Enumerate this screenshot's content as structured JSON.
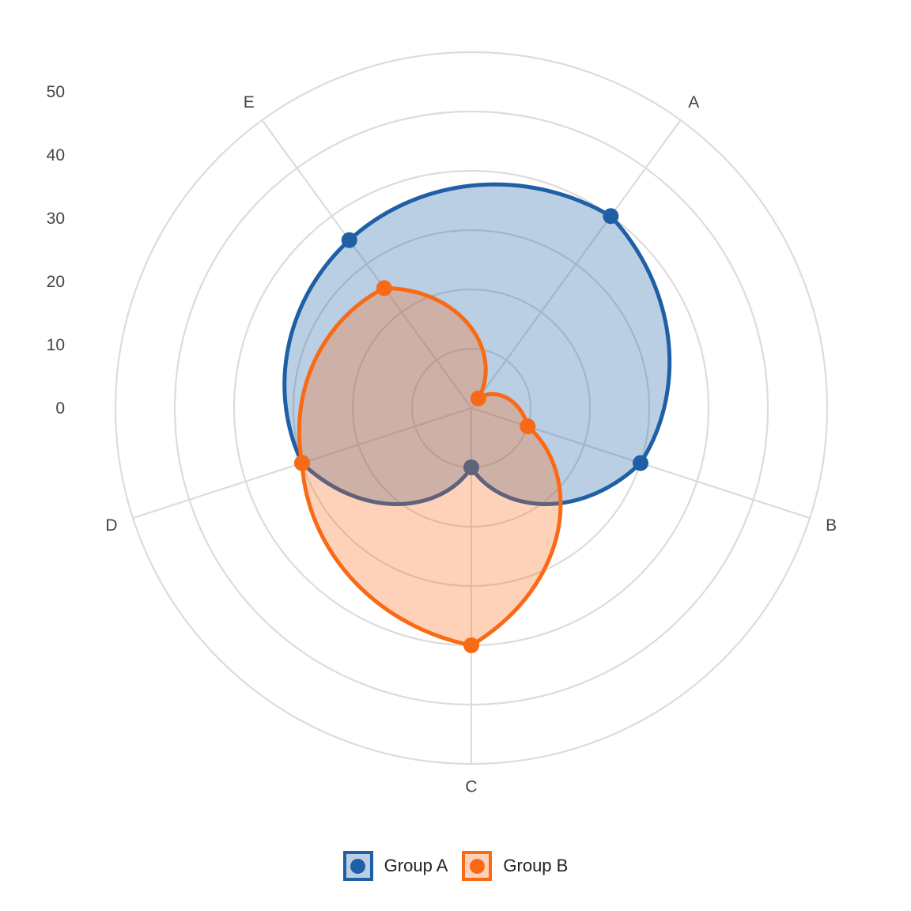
{
  "chart_data": {
    "type": "radar",
    "title": "",
    "categories": [
      "A",
      "B",
      "C",
      "D",
      "E"
    ],
    "radial_ticks": [
      "0",
      "10",
      "20",
      "30",
      "40",
      "50"
    ],
    "rlim": [
      -10,
      50
    ],
    "grid": true,
    "legend_position": "bottom",
    "series": [
      {
        "name": "Group A",
        "values": [
          30,
          20,
          0,
          20,
          25
        ],
        "color": "#1f5fa6",
        "fill": "rgba(31,95,166,0.30)"
      },
      {
        "name": "Group B",
        "values": [
          -8,
          0,
          30,
          20,
          15
        ],
        "color": "#f96a16",
        "fill": "rgba(249,106,22,0.30)"
      }
    ]
  }
}
